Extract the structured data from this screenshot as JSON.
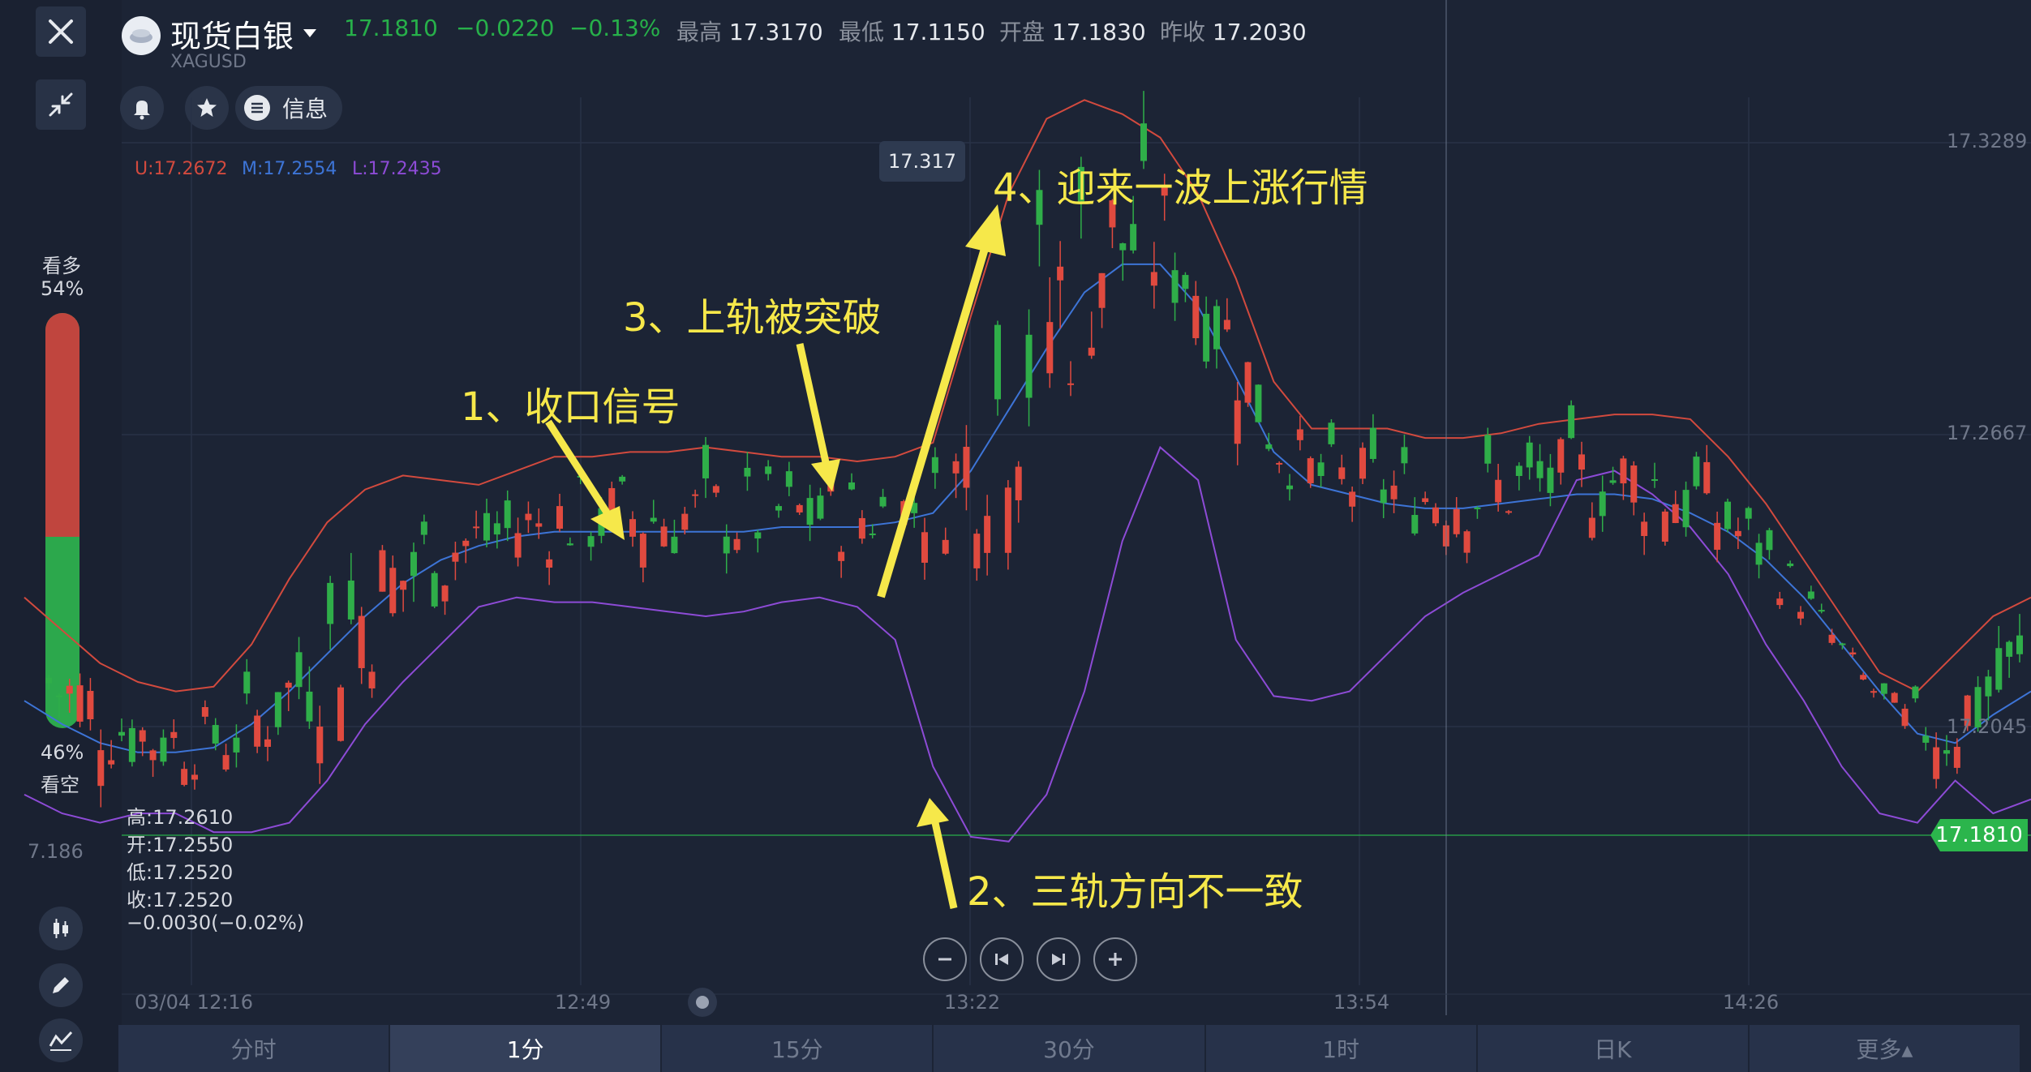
{
  "header": {
    "title": "现货白银",
    "symbol": "XAGUSD",
    "last_price": "17.1810",
    "change": "−0.0220",
    "change_pct": "−0.13%",
    "high_label": "最高",
    "high_value": "17.3170",
    "low_label": "最低",
    "low_value": "17.1150",
    "open_label": "开盘",
    "open_value": "17.1830",
    "prev_close_label": "昨收",
    "prev_close_value": "17.2030",
    "info_label": "信息"
  },
  "indicator": {
    "upper": "U:17.2672",
    "middle": "M:17.2554",
    "lower": "L:17.2435",
    "upper_color": "#d24a3e",
    "middle_color": "#3d74d6",
    "lower_color": "#8d4bd6"
  },
  "sentiment": {
    "bull_label": "看多",
    "bull_pct": "54%",
    "bear_pct": "46%",
    "bear_label": "看空",
    "bull_value": 0.54,
    "bull_color": "#c0453e",
    "bear_color": "#2ca84c"
  },
  "price_axis": [
    "17.3289",
    "17.2667",
    "17.2045"
  ],
  "current_price_tag": "17.1810",
  "left_price_hint": "7.186",
  "peak_bubble": "17.317",
  "crosshair_ohlc": {
    "high": "高:17.2610",
    "open": "开:17.2550",
    "low": "低:17.2520",
    "close": "收:17.2520",
    "change": "−0.0030(−0.02%)"
  },
  "time_axis": [
    "03/04 12:16",
    "12:49",
    "13:22",
    "13:54",
    "14:26"
  ],
  "annotations": {
    "a1": "1、收口信号",
    "a2": "2、三轨方向不一致",
    "a3": "3、上轨被突破",
    "a4": "4、迎来一波上涨行情"
  },
  "tabs": [
    "分时",
    "1分",
    "15分",
    "30分",
    "1时",
    "日K",
    "更多▴"
  ],
  "active_tab": 1,
  "chart_data": {
    "type": "candlestick",
    "series": [
      {
        "name": "U",
        "values": [
          17.232,
          17.225,
          17.218,
          17.214,
          17.212,
          17.213,
          17.222,
          17.236,
          17.248,
          17.255,
          17.258,
          17.257,
          17.256,
          17.259,
          17.262,
          17.262,
          17.263,
          17.263,
          17.264,
          17.263,
          17.262,
          17.262,
          17.261,
          17.262,
          17.265,
          17.292,
          17.318,
          17.334,
          17.338,
          17.335,
          17.33,
          17.318,
          17.3,
          17.278,
          17.268,
          17.268,
          17.268,
          17.266,
          17.266,
          17.267,
          17.269,
          17.27,
          17.271,
          17.271,
          17.27,
          17.262,
          17.252,
          17.24,
          17.228,
          17.216,
          17.212,
          17.22,
          17.228,
          17.232
        ]
      },
      {
        "name": "M",
        "values": [
          17.21,
          17.205,
          17.201,
          17.199,
          17.199,
          17.2,
          17.205,
          17.212,
          17.22,
          17.228,
          17.235,
          17.24,
          17.243,
          17.245,
          17.246,
          17.246,
          17.246,
          17.246,
          17.246,
          17.246,
          17.247,
          17.247,
          17.247,
          17.248,
          17.25,
          17.259,
          17.272,
          17.285,
          17.297,
          17.303,
          17.303,
          17.294,
          17.279,
          17.263,
          17.256,
          17.254,
          17.252,
          17.251,
          17.251,
          17.252,
          17.253,
          17.254,
          17.254,
          17.253,
          17.25,
          17.246,
          17.24,
          17.232,
          17.222,
          17.212,
          17.203,
          17.201,
          17.207,
          17.212
        ]
      },
      {
        "name": "L",
        "values": [
          17.19,
          17.186,
          17.184,
          17.186,
          17.186,
          17.182,
          17.182,
          17.184,
          17.193,
          17.205,
          17.214,
          17.222,
          17.23,
          17.232,
          17.231,
          17.231,
          17.23,
          17.229,
          17.228,
          17.229,
          17.231,
          17.232,
          17.23,
          17.223,
          17.196,
          17.181,
          17.18,
          17.19,
          17.212,
          17.244,
          17.264,
          17.257,
          17.223,
          17.211,
          17.21,
          17.212,
          17.22,
          17.228,
          17.233,
          17.237,
          17.241,
          17.257,
          17.259,
          17.254,
          17.247,
          17.237,
          17.222,
          17.21,
          17.196,
          17.186,
          17.184,
          17.193,
          17.186,
          17.189
        ]
      }
    ],
    "ylim": [
      17.175,
      17.345
    ],
    "annotations": [
      "1、收口信号",
      "2、三轨方向不一致",
      "3、上轨被突破",
      "4、迎来一波上涨行情"
    ]
  }
}
